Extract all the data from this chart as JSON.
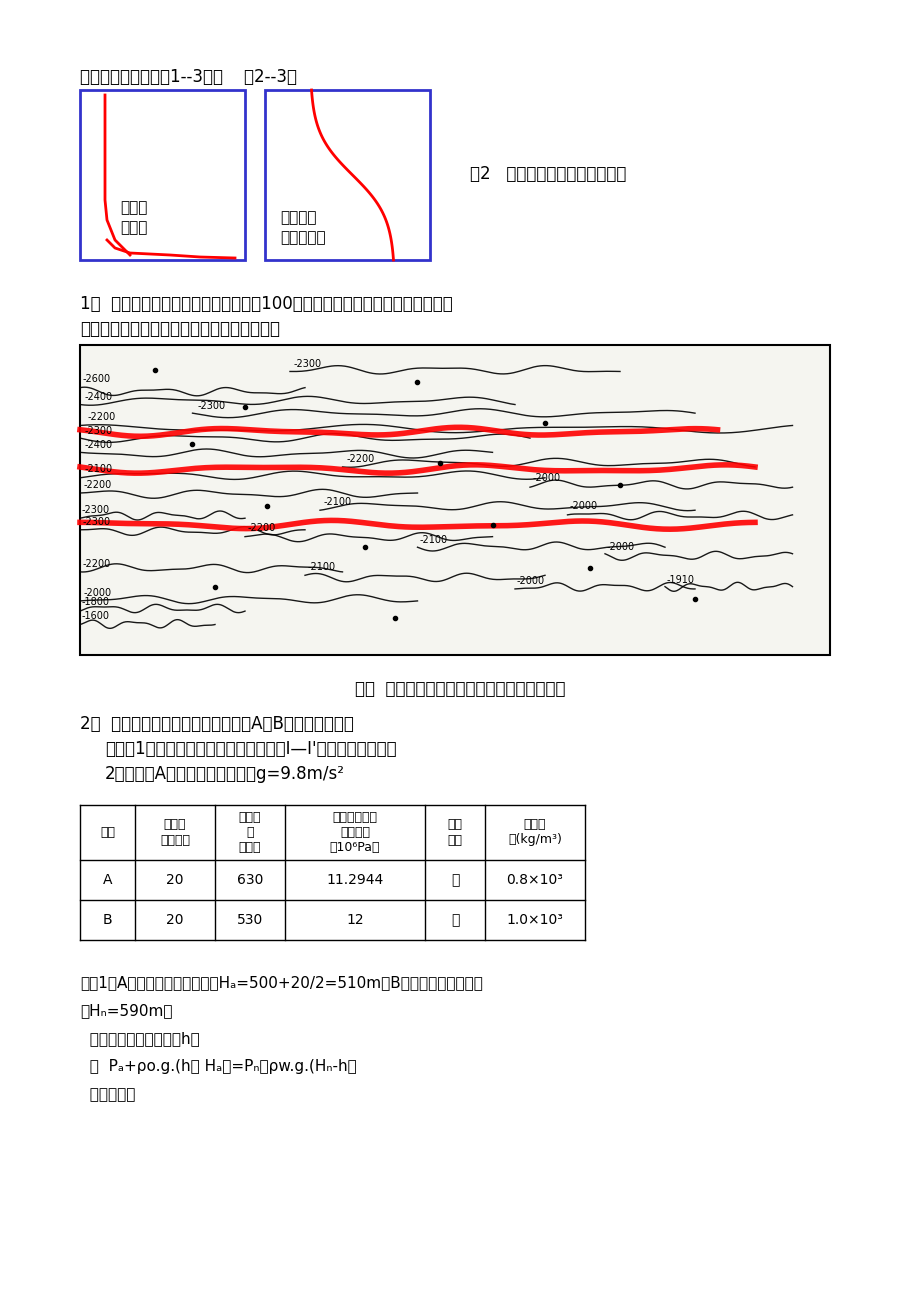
{
  "bg_color": "#ffffff",
  "title_text": "答案及评分标准：图1--3分；    图2--3分",
  "box1_label1": "分选好",
  "box1_label2": "粗歪度",
  "box2_label1": "分选不好",
  "box2_label2": "略显细歪度",
  "fig2_caption": "图2   毛细管压力曲线形态示意图",
  "text1": "1．  根据断面构造图（构造等高线距为100米）和各井同一套地层顶面标高，绘\n该地层顶面构造图，完成断点组合，见图一。",
  "fig1_caption": "图一  断面构造图和各井钻遇的某地层顶面标高",
  "text2_line1": "2．  已知油层顶面构造图（图二）和A、B两口探井资料。",
  "text2_line2": "要求：1）在图中圈出含油面积，并绘制Ⅰ—Ⅰ'油藏剖面示意图。",
  "text2_line3": "2）试说明A探井是否为自喷井。g=9.8m/s²",
  "table_headers": [
    "井号",
    "油层厚\n度（米）",
    "井口海\n拔\n（米）",
    "油层中部原始\n油层压力\n（10⁶Pa）",
    "流体\n性质",
    "流体密\n度(kg/m³)"
  ],
  "table_row1": [
    "A",
    "20",
    "630",
    "11.2944",
    "油",
    "0.8×10³"
  ],
  "table_row2": [
    "B",
    "20",
    "530",
    "12",
    "水",
    "1.0×10³"
  ],
  "solution_text1": "解：1）A井油层中部海拔高度为Hₐ=500+20/2=510m，B井油层中部海拔高度",
  "solution_text2": "为Hₙ=590m。",
  "solution_text3": "  设油水界面海拔高度为h，",
  "solution_text4": "  则  Pₐ+ρo.g.(h－ Hₐ）=Pₙ－ρw.g.(Hₙ-h）",
  "solution_text5": "  代入数据："
}
